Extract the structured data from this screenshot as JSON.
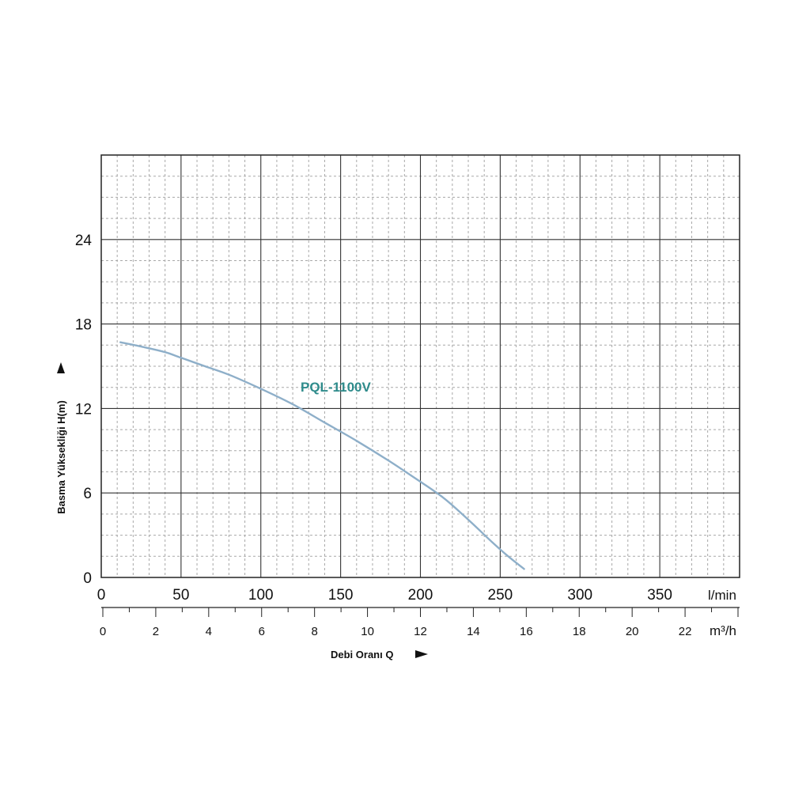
{
  "chart_data": {
    "type": "line",
    "x_unit_top": "l/min",
    "x_unit_bottom": "m³/h",
    "xlabel": "Debi Oranı Q",
    "ylabel": "Basma Yüksekliği H(m)",
    "xlim": [
      0,
      400
    ],
    "ylim": [
      0,
      30
    ],
    "x_ticks_top": [
      0,
      50,
      100,
      150,
      200,
      250,
      300,
      350
    ],
    "x_ticks_bottom": [
      0,
      2,
      4,
      6,
      8,
      10,
      12,
      14,
      16,
      18,
      20,
      22
    ],
    "y_ticks": [
      0,
      6,
      12,
      18,
      24
    ],
    "grid": true,
    "series": [
      {
        "name": "PQL-1100V",
        "color": "#8eafc9",
        "label_color": "#2e8b8b",
        "x": [
          12,
          25,
          40,
          50,
          65,
          80,
          100,
          120,
          140,
          160,
          180,
          200,
          215,
          230,
          245,
          255,
          265
        ],
        "y": [
          16.7,
          16.4,
          16.0,
          15.6,
          15.0,
          14.4,
          13.4,
          12.3,
          11.0,
          9.7,
          8.3,
          6.8,
          5.6,
          4.1,
          2.5,
          1.5,
          0.6
        ]
      }
    ]
  }
}
